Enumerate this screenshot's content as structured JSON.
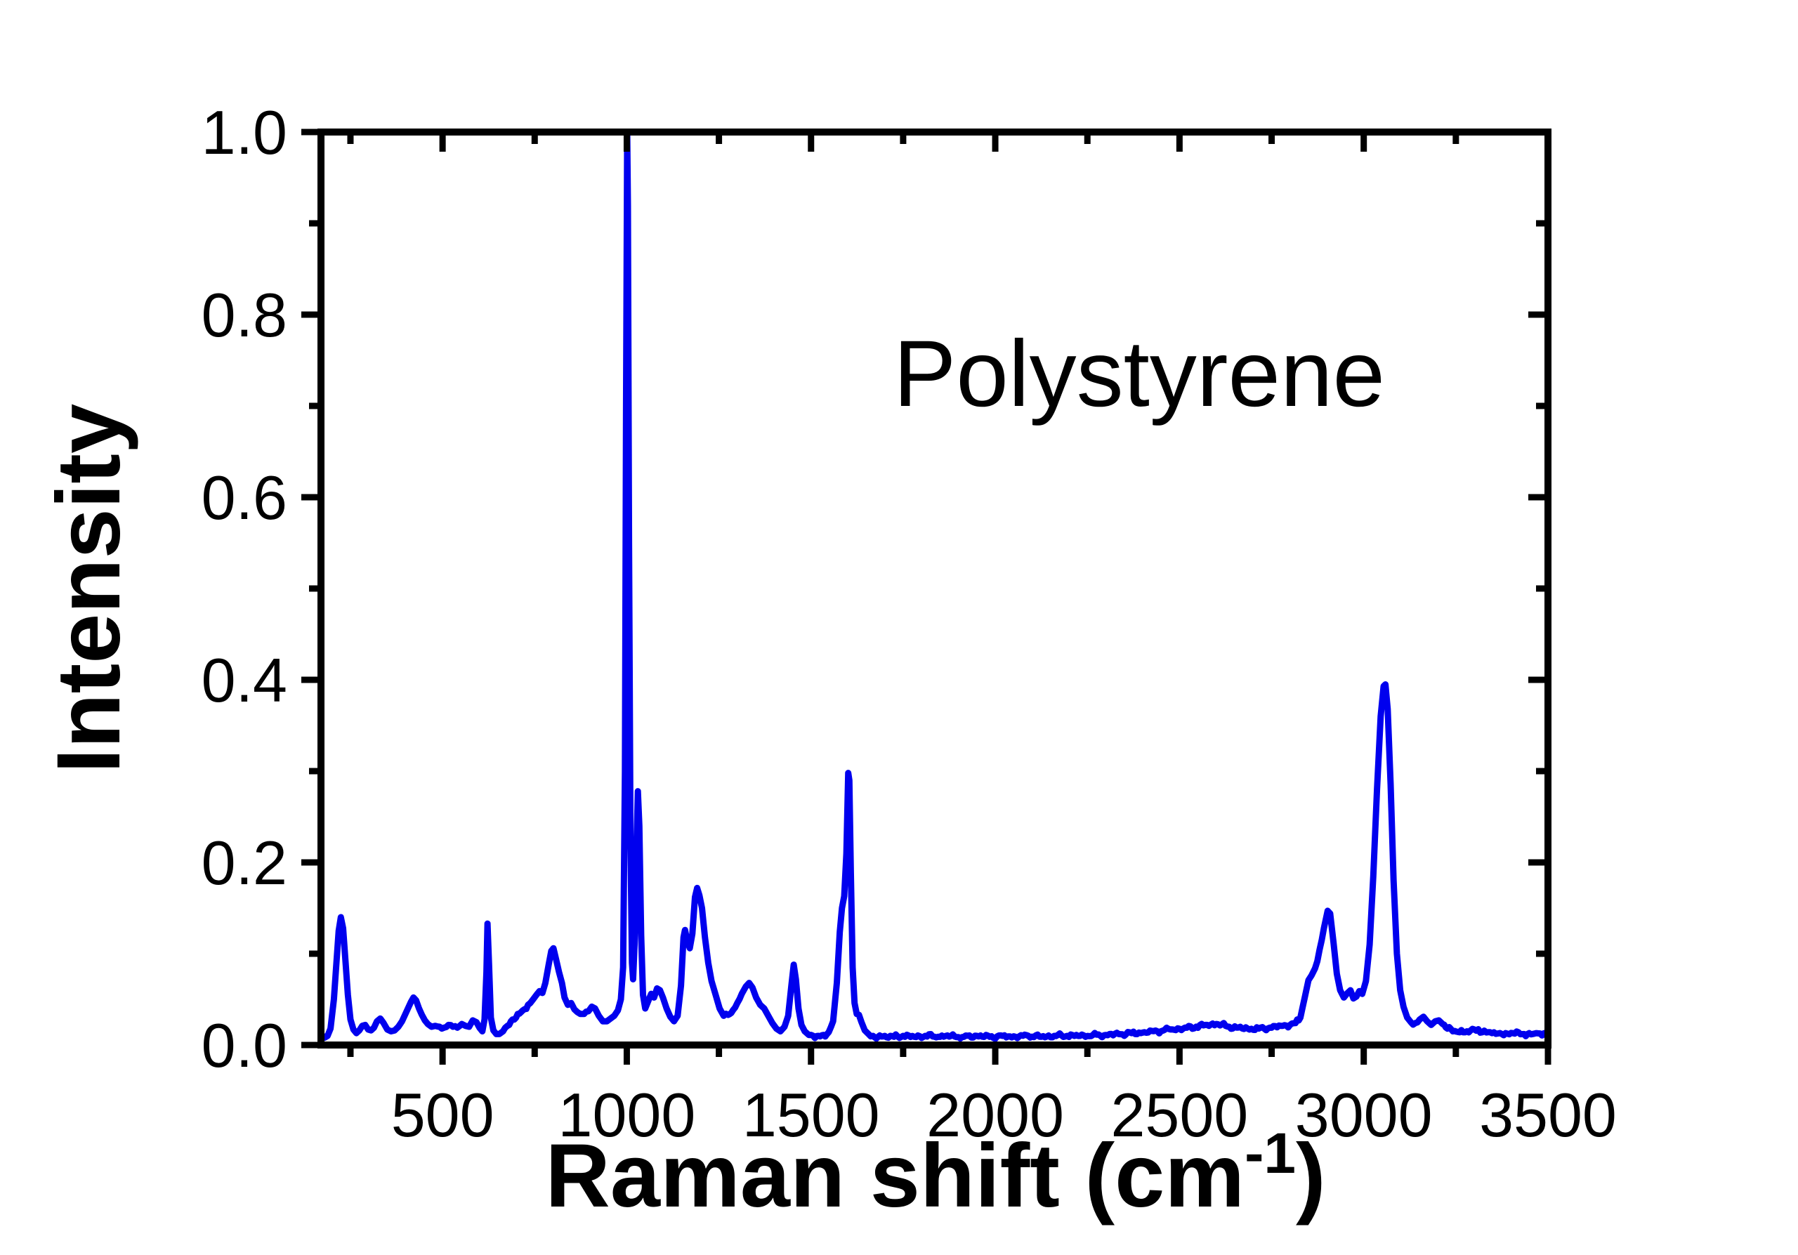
{
  "figure": {
    "background": "#ffffff"
  },
  "chart_data": {
    "type": "line",
    "title": "",
    "annotation": "Polystyrene",
    "ylabel": "Intensity",
    "xlabel_parts": {
      "prefix": "Raman shift (cm",
      "superscript": "-1",
      "suffix": ")"
    },
    "xlabel_plain": "Raman shift (cm-1)",
    "xlim": [
      170,
      3500
    ],
    "ylim": [
      0,
      1.0
    ],
    "x_major_ticks": [
      500,
      1000,
      1500,
      2000,
      2500,
      3000,
      3500
    ],
    "x_major_labels": [
      "500",
      "1000",
      "1500",
      "2000",
      "2500",
      "3000",
      "3500"
    ],
    "x_minor_ticks": [
      250,
      750,
      1250,
      1750,
      2250,
      2750,
      3250
    ],
    "y_major_ticks": [
      0,
      0.2,
      0.4,
      0.6,
      0.8,
      1.0
    ],
    "y_major_labels": [
      "0.0",
      "0.2",
      "0.4",
      "0.6",
      "0.8",
      "1.0"
    ],
    "y_minor_ticks": [
      0.1,
      0.3,
      0.5,
      0.7,
      0.9
    ],
    "grid": false,
    "legend": false,
    "line_color": "#0000ee",
    "axis_color": "#000000",
    "noise_amplitude": 0.0028,
    "series": [
      {
        "name": "Polystyrene Raman spectrum",
        "points": [
          [
            170,
            0.012
          ],
          [
            180,
            0.008
          ],
          [
            188,
            0.01
          ],
          [
            196,
            0.018
          ],
          [
            205,
            0.05
          ],
          [
            212,
            0.09
          ],
          [
            218,
            0.125
          ],
          [
            224,
            0.14
          ],
          [
            230,
            0.128
          ],
          [
            236,
            0.095
          ],
          [
            243,
            0.055
          ],
          [
            250,
            0.028
          ],
          [
            258,
            0.017
          ],
          [
            266,
            0.013
          ],
          [
            274,
            0.016
          ],
          [
            282,
            0.021
          ],
          [
            290,
            0.022
          ],
          [
            298,
            0.017
          ],
          [
            306,
            0.016
          ],
          [
            314,
            0.019
          ],
          [
            322,
            0.026
          ],
          [
            331,
            0.029
          ],
          [
            340,
            0.024
          ],
          [
            350,
            0.017
          ],
          [
            360,
            0.015
          ],
          [
            370,
            0.016
          ],
          [
            380,
            0.02
          ],
          [
            390,
            0.026
          ],
          [
            398,
            0.033
          ],
          [
            406,
            0.04
          ],
          [
            414,
            0.047
          ],
          [
            421,
            0.052
          ],
          [
            428,
            0.049
          ],
          [
            436,
            0.04
          ],
          [
            444,
            0.033
          ],
          [
            452,
            0.027
          ],
          [
            460,
            0.023
          ],
          [
            470,
            0.02
          ],
          [
            480,
            0.021
          ],
          [
            492,
            0.02
          ],
          [
            504,
            0.019
          ],
          [
            516,
            0.022
          ],
          [
            528,
            0.02
          ],
          [
            540,
            0.019
          ],
          [
            552,
            0.023
          ],
          [
            562,
            0.021
          ],
          [
            572,
            0.02
          ],
          [
            582,
            0.027
          ],
          [
            592,
            0.025
          ],
          [
            600,
            0.019
          ],
          [
            608,
            0.015
          ],
          [
            614,
            0.028
          ],
          [
            619,
            0.08
          ],
          [
            622,
            0.133
          ],
          [
            626,
            0.09
          ],
          [
            631,
            0.03
          ],
          [
            638,
            0.016
          ],
          [
            646,
            0.012
          ],
          [
            654,
            0.012
          ],
          [
            664,
            0.015
          ],
          [
            676,
            0.021
          ],
          [
            690,
            0.028
          ],
          [
            704,
            0.034
          ],
          [
            718,
            0.038
          ],
          [
            732,
            0.044
          ],
          [
            744,
            0.049
          ],
          [
            755,
            0.055
          ],
          [
            763,
            0.059
          ],
          [
            771,
            0.057
          ],
          [
            779,
            0.068
          ],
          [
            788,
            0.088
          ],
          [
            795,
            0.103
          ],
          [
            801,
            0.106
          ],
          [
            808,
            0.094
          ],
          [
            816,
            0.08
          ],
          [
            824,
            0.068
          ],
          [
            831,
            0.052
          ],
          [
            840,
            0.044
          ],
          [
            849,
            0.046
          ],
          [
            858,
            0.039
          ],
          [
            866,
            0.036
          ],
          [
            874,
            0.034
          ],
          [
            884,
            0.034
          ],
          [
            896,
            0.037
          ],
          [
            905,
            0.042
          ],
          [
            914,
            0.04
          ],
          [
            924,
            0.032
          ],
          [
            935,
            0.026
          ],
          [
            946,
            0.026
          ],
          [
            956,
            0.029
          ],
          [
            966,
            0.032
          ],
          [
            976,
            0.038
          ],
          [
            984,
            0.05
          ],
          [
            990,
            0.085
          ],
          [
            995,
            0.3
          ],
          [
            998,
            0.7
          ],
          [
            1001,
            1.0
          ],
          [
            1003,
            0.92
          ],
          [
            1006,
            0.55
          ],
          [
            1010,
            0.22
          ],
          [
            1014,
            0.09
          ],
          [
            1017,
            0.072
          ],
          [
            1021,
            0.11
          ],
          [
            1026,
            0.21
          ],
          [
            1030,
            0.278
          ],
          [
            1034,
            0.24
          ],
          [
            1039,
            0.12
          ],
          [
            1044,
            0.055
          ],
          [
            1050,
            0.04
          ],
          [
            1058,
            0.048
          ],
          [
            1066,
            0.056
          ],
          [
            1074,
            0.052
          ],
          [
            1082,
            0.062
          ],
          [
            1090,
            0.06
          ],
          [
            1098,
            0.052
          ],
          [
            1108,
            0.04
          ],
          [
            1118,
            0.031
          ],
          [
            1128,
            0.026
          ],
          [
            1138,
            0.032
          ],
          [
            1147,
            0.065
          ],
          [
            1154,
            0.118
          ],
          [
            1158,
            0.126
          ],
          [
            1164,
            0.114
          ],
          [
            1171,
            0.106
          ],
          [
            1178,
            0.122
          ],
          [
            1185,
            0.162
          ],
          [
            1191,
            0.172
          ],
          [
            1197,
            0.164
          ],
          [
            1204,
            0.15
          ],
          [
            1212,
            0.118
          ],
          [
            1221,
            0.09
          ],
          [
            1230,
            0.07
          ],
          [
            1241,
            0.055
          ],
          [
            1252,
            0.04
          ],
          [
            1263,
            0.032
          ],
          [
            1275,
            0.033
          ],
          [
            1288,
            0.038
          ],
          [
            1300,
            0.046
          ],
          [
            1312,
            0.056
          ],
          [
            1323,
            0.064
          ],
          [
            1332,
            0.068
          ],
          [
            1341,
            0.063
          ],
          [
            1351,
            0.052
          ],
          [
            1362,
            0.044
          ],
          [
            1373,
            0.04
          ],
          [
            1384,
            0.032
          ],
          [
            1395,
            0.024
          ],
          [
            1406,
            0.018
          ],
          [
            1417,
            0.015
          ],
          [
            1428,
            0.02
          ],
          [
            1438,
            0.032
          ],
          [
            1447,
            0.066
          ],
          [
            1453,
            0.088
          ],
          [
            1459,
            0.072
          ],
          [
            1466,
            0.04
          ],
          [
            1474,
            0.022
          ],
          [
            1483,
            0.015
          ],
          [
            1494,
            0.011
          ],
          [
            1506,
            0.01
          ],
          [
            1520,
            0.01
          ],
          [
            1534,
            0.011
          ],
          [
            1548,
            0.014
          ],
          [
            1560,
            0.026
          ],
          [
            1570,
            0.068
          ],
          [
            1578,
            0.124
          ],
          [
            1584,
            0.15
          ],
          [
            1590,
            0.163
          ],
          [
            1596,
            0.21
          ],
          [
            1601,
            0.298
          ],
          [
            1604,
            0.29
          ],
          [
            1608,
            0.19
          ],
          [
            1613,
            0.085
          ],
          [
            1618,
            0.046
          ],
          [
            1624,
            0.034
          ],
          [
            1630,
            0.033
          ],
          [
            1637,
            0.025
          ],
          [
            1646,
            0.016
          ],
          [
            1656,
            0.012
          ],
          [
            1668,
            0.01
          ],
          [
            1682,
            0.009
          ],
          [
            1700,
            0.01
          ],
          [
            1725,
            0.009
          ],
          [
            1750,
            0.01
          ],
          [
            1780,
            0.009
          ],
          [
            1810,
            0.01
          ],
          [
            1845,
            0.009
          ],
          [
            1880,
            0.01
          ],
          [
            1915,
            0.009
          ],
          [
            1950,
            0.01
          ],
          [
            1985,
            0.009
          ],
          [
            2020,
            0.01
          ],
          [
            2055,
            0.009
          ],
          [
            2090,
            0.01
          ],
          [
            2125,
            0.009
          ],
          [
            2160,
            0.01
          ],
          [
            2195,
            0.01
          ],
          [
            2230,
            0.01
          ],
          [
            2265,
            0.011
          ],
          [
            2300,
            0.011
          ],
          [
            2335,
            0.012
          ],
          [
            2370,
            0.013
          ],
          [
            2405,
            0.014
          ],
          [
            2440,
            0.015
          ],
          [
            2475,
            0.017
          ],
          [
            2510,
            0.018
          ],
          [
            2545,
            0.02
          ],
          [
            2575,
            0.022
          ],
          [
            2600,
            0.023
          ],
          [
            2625,
            0.021
          ],
          [
            2655,
            0.019
          ],
          [
            2685,
            0.018
          ],
          [
            2715,
            0.018
          ],
          [
            2745,
            0.019
          ],
          [
            2775,
            0.021
          ],
          [
            2800,
            0.022
          ],
          [
            2815,
            0.024
          ],
          [
            2828,
            0.03
          ],
          [
            2840,
            0.052
          ],
          [
            2850,
            0.071
          ],
          [
            2858,
            0.076
          ],
          [
            2868,
            0.084
          ],
          [
            2880,
            0.104
          ],
          [
            2892,
            0.128
          ],
          [
            2902,
            0.147
          ],
          [
            2909,
            0.144
          ],
          [
            2918,
            0.112
          ],
          [
            2927,
            0.078
          ],
          [
            2936,
            0.06
          ],
          [
            2946,
            0.052
          ],
          [
            2956,
            0.057
          ],
          [
            2964,
            0.06
          ],
          [
            2972,
            0.051
          ],
          [
            2980,
            0.053
          ],
          [
            2988,
            0.059
          ],
          [
            2996,
            0.056
          ],
          [
            3006,
            0.07
          ],
          [
            3016,
            0.11
          ],
          [
            3026,
            0.185
          ],
          [
            3036,
            0.28
          ],
          [
            3046,
            0.36
          ],
          [
            3054,
            0.393
          ],
          [
            3059,
            0.395
          ],
          [
            3065,
            0.368
          ],
          [
            3073,
            0.285
          ],
          [
            3081,
            0.18
          ],
          [
            3090,
            0.1
          ],
          [
            3099,
            0.06
          ],
          [
            3108,
            0.042
          ],
          [
            3118,
            0.03
          ],
          [
            3128,
            0.025
          ],
          [
            3140,
            0.024
          ],
          [
            3152,
            0.028
          ],
          [
            3162,
            0.031
          ],
          [
            3172,
            0.026
          ],
          [
            3183,
            0.022
          ],
          [
            3194,
            0.026
          ],
          [
            3204,
            0.027
          ],
          [
            3214,
            0.023
          ],
          [
            3227,
            0.018
          ],
          [
            3242,
            0.015
          ],
          [
            3260,
            0.014
          ],
          [
            3280,
            0.015
          ],
          [
            3300,
            0.017
          ],
          [
            3322,
            0.014
          ],
          [
            3348,
            0.013
          ],
          [
            3375,
            0.012
          ],
          [
            3405,
            0.013
          ],
          [
            3435,
            0.012
          ],
          [
            3468,
            0.013
          ],
          [
            3500,
            0.012
          ]
        ]
      }
    ]
  }
}
